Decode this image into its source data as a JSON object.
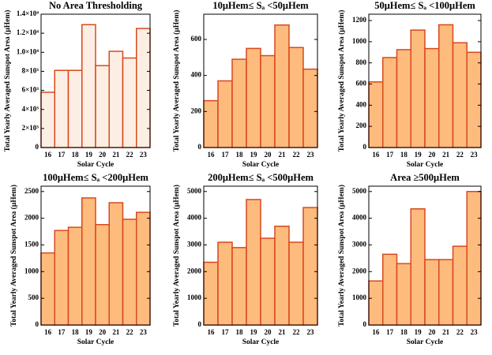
{
  "chart_data": [
    {
      "type": "bar",
      "title": "No Area Thresholding",
      "xlabel": "Solar Cycle",
      "ylabel": "Total Yearly Averaged Sunspot Area (μHem)",
      "categories": [
        "16",
        "17",
        "18",
        "19",
        "20",
        "21",
        "22",
        "23"
      ],
      "values": [
        5800,
        8100,
        8100,
        12900,
        8600,
        10100,
        9400,
        12500
      ],
      "color": "#fdeee4",
      "edgecolor": "#d9481b",
      "ylim": [
        0,
        14000
      ],
      "yticks": [
        0,
        {
          "value": 2000,
          "label": "2×10³"
        },
        {
          "value": 4000,
          "label": "4×10³"
        },
        {
          "value": 6000,
          "label": "6×10³"
        },
        {
          "value": 8000,
          "label": "8×10³"
        },
        {
          "value": 10000,
          "label": "1.0×10⁴"
        },
        {
          "value": 12000,
          "label": "1.2×10⁴"
        },
        {
          "value": 14000,
          "label": "1.4×10⁴"
        }
      ]
    },
    {
      "type": "bar",
      "title": "10μHem≤ Sₐ <50μHem",
      "xlabel": "Solar Cycle",
      "ylabel": "Total Yearly Averaged Sunspot Area (μHem)",
      "categories": [
        "16",
        "17",
        "18",
        "19",
        "20",
        "21",
        "22",
        "23"
      ],
      "values": [
        260,
        370,
        490,
        550,
        510,
        680,
        555,
        435
      ],
      "color": "#fdbb7e",
      "edgecolor": "#d9481b",
      "ylim": [
        0,
        740
      ],
      "yticks": [
        0,
        200,
        400,
        600
      ]
    },
    {
      "type": "bar",
      "title": "50μHem≤ Sₐ <100μHem",
      "xlabel": "Solar Cycle",
      "ylabel": "Total Yearly Averaged Sunspot Area (μHem)",
      "categories": [
        "16",
        "17",
        "18",
        "19",
        "20",
        "21",
        "22",
        "23"
      ],
      "values": [
        620,
        850,
        925,
        1110,
        935,
        1160,
        990,
        900
      ],
      "color": "#fdbb7e",
      "edgecolor": "#d9481b",
      "ylim": [
        0,
        1260
      ],
      "yticks": [
        0,
        200,
        400,
        600,
        800,
        1000,
        1200
      ]
    },
    {
      "type": "bar",
      "title": "100μHem≤ Sₐ <200μHem",
      "xlabel": "Solar Cycle",
      "ylabel": "Total Yearly Averaged Sunspot Area (μHem)",
      "categories": [
        "16",
        "17",
        "18",
        "19",
        "20",
        "21",
        "22",
        "23"
      ],
      "values": [
        1350,
        1770,
        1830,
        2380,
        1880,
        2290,
        1980,
        2110
      ],
      "color": "#fdbb7e",
      "edgecolor": "#d9481b",
      "ylim": [
        0,
        2600
      ],
      "yticks": [
        0,
        500,
        1000,
        1500,
        2000,
        2500
      ]
    },
    {
      "type": "bar",
      "title": "200μHem≤ Sₐ <500μHem",
      "xlabel": "Solar Cycle",
      "ylabel": "Total Yearly Averaged Sunspot Area (μHem)",
      "categories": [
        "16",
        "17",
        "18",
        "19",
        "20",
        "21",
        "22",
        "23"
      ],
      "values": [
        2350,
        3100,
        2900,
        4700,
        3250,
        3700,
        3100,
        4400
      ],
      "color": "#fdbb7e",
      "edgecolor": "#d9481b",
      "ylim": [
        0,
        5200
      ],
      "yticks": [
        0,
        1000,
        2000,
        3000,
        4000,
        5000
      ]
    },
    {
      "type": "bar",
      "title": "Area ≥500μHem",
      "xlabel": "Solar Cycle",
      "ylabel": "Total Yearly Averaged Sunspot Area (μHem)",
      "categories": [
        "16",
        "17",
        "18",
        "19",
        "20",
        "21",
        "22",
        "23"
      ],
      "values": [
        1650,
        2650,
        2300,
        4350,
        2450,
        2450,
        2950,
        5000
      ],
      "color": "#fdbb7e",
      "edgecolor": "#d9481b",
      "ylim": [
        0,
        5200
      ],
      "yticks": [
        0,
        1000,
        2000,
        3000,
        4000,
        5000
      ]
    }
  ]
}
